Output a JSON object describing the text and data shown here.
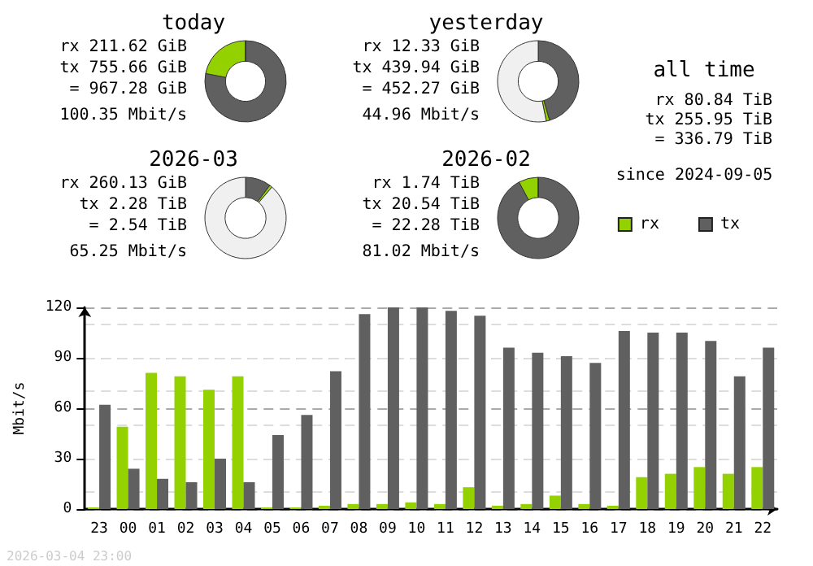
{
  "chart_data": [
    {
      "type": "donut",
      "title": "today",
      "categories": [
        null,
        null,
        null
      ],
      "values": [
        78.1,
        21.9,
        0
      ],
      "colors": [
        "#606060",
        "#94d100",
        "#f0f0f0"
      ],
      "annotations": [
        "rx 211.62 GiB",
        "tx 755.66 GiB",
        "= 967.28 GiB",
        "100.35 Mbit/s"
      ]
    },
    {
      "type": "donut",
      "title": "yesterday",
      "categories": [
        null,
        null,
        null
      ],
      "values": [
        45.5,
        1.3,
        53.2
      ],
      "colors": [
        "#606060",
        "#94d100",
        "#f0f0f0"
      ],
      "annotations": [
        "rx 12.33 GiB",
        "tx 439.94 GiB",
        "= 452.27 GiB",
        "44.96 Mbit/s"
      ]
    },
    {
      "type": "other",
      "title": "all time",
      "annotations": [
        "rx 80.84 TiB",
        "tx 255.95 TiB",
        "= 336.79 TiB",
        "since 2024-09-05"
      ]
    },
    {
      "type": "donut",
      "title": "2026-03",
      "categories": [
        null,
        null,
        null
      ],
      "values": [
        10.2,
        1.1,
        88.7
      ],
      "colors": [
        "#606060",
        "#94d100",
        "#f0f0f0"
      ],
      "annotations": [
        "rx 260.13 GiB",
        "tx 2.28 TiB",
        "= 2.54 TiB",
        "65.25 Mbit/s"
      ]
    },
    {
      "type": "donut",
      "title": "2026-02",
      "categories": [
        null,
        null,
        null
      ],
      "values": [
        92.2,
        7.8,
        0
      ],
      "colors": [
        "#606060",
        "#94d100",
        "#f0f0f0"
      ],
      "annotations": [
        "rx 1.74 TiB",
        "tx 20.54 TiB",
        "= 22.28 TiB",
        "81.02 Mbit/s"
      ]
    },
    {
      "type": "bar",
      "ylabel": "Mbit/s",
      "legend": "top right",
      "grid": "y",
      "ylim": [
        0,
        120
      ],
      "yticks": [
        0,
        30,
        60,
        90,
        120
      ],
      "categories": [
        "23",
        "00",
        "01",
        "02",
        "03",
        "04",
        "05",
        "06",
        "07",
        "08",
        "09",
        "10",
        "11",
        "12",
        "13",
        "14",
        "15",
        "16",
        "17",
        "18",
        "19",
        "20",
        "21",
        "22"
      ],
      "series": [
        {
          "name": "rx",
          "color": "#94d100",
          "values": [
            1,
            49,
            81,
            79,
            71,
            79,
            1,
            1,
            2,
            3,
            3,
            4,
            3,
            13,
            2,
            3,
            8,
            3,
            2,
            19,
            21,
            25,
            21,
            25
          ]
        },
        {
          "name": "tx",
          "color": "#606060",
          "values": [
            62,
            24,
            18,
            16,
            30,
            16,
            44,
            56,
            82,
            116,
            120,
            120,
            118,
            115,
            96,
            93,
            91,
            87,
            106,
            105,
            105,
            100,
            79,
            96
          ]
        }
      ],
      "annotations": [
        "2026-03-04 23:00"
      ]
    }
  ]
}
